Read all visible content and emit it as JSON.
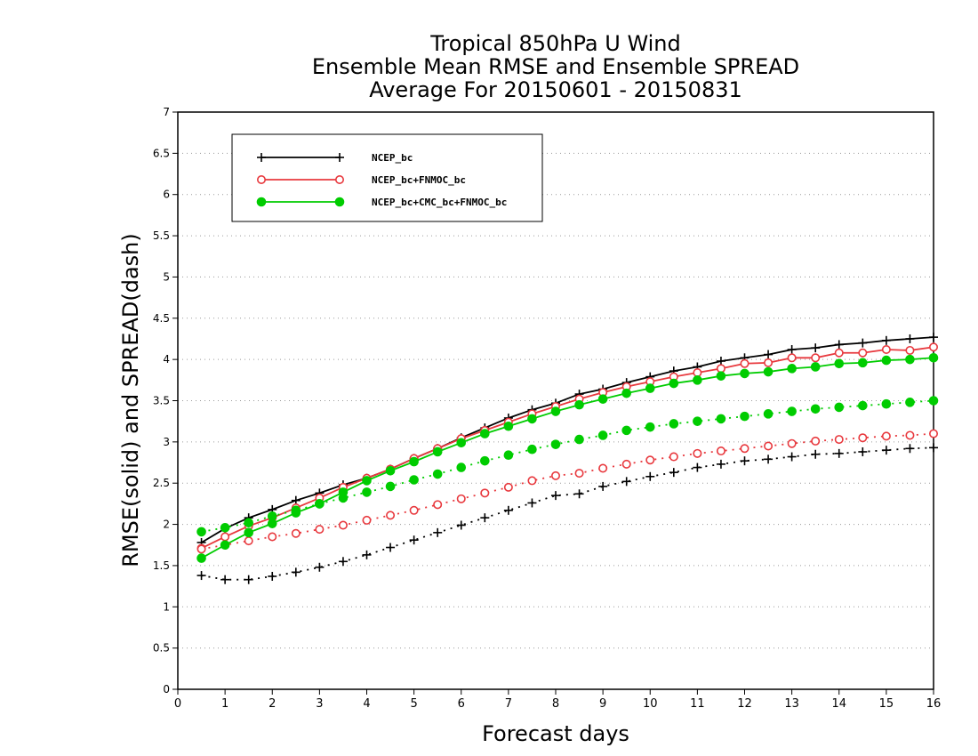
{
  "chart_data": {
    "type": "line",
    "title": "Tropical 850hPa U Wind",
    "subtitle": "Ensemble Mean RMSE and Ensemble SPREAD",
    "subtitle2": "Average For 20150601 - 20150831",
    "xlabel": "Forecast days",
    "ylabel": "RMSE(solid) and SPREAD(dash)",
    "xlim": [
      0,
      16
    ],
    "ylim": [
      0,
      7
    ],
    "x_ticks": [
      "0",
      "1",
      "2",
      "3",
      "4",
      "5",
      "6",
      "7",
      "8",
      "9",
      "10",
      "11",
      "12",
      "13",
      "14",
      "15",
      "16"
    ],
    "y_ticks": [
      "0",
      "0.5",
      "1",
      "1.5",
      "2",
      "2.5",
      "3",
      "3.5",
      "4",
      "4.5",
      "5",
      "5.5",
      "6",
      "6.5",
      "7"
    ],
    "grid": "horizontal dotted",
    "legend_position": "top-left",
    "x": [
      0.5,
      1,
      1.5,
      2,
      2.5,
      3,
      3.5,
      4,
      4.5,
      5,
      5.5,
      6,
      6.5,
      7,
      7.5,
      8,
      8.5,
      9,
      9.5,
      10,
      10.5,
      11,
      11.5,
      12,
      12.5,
      13,
      13.5,
      14,
      14.5,
      15,
      15.5,
      16
    ],
    "series": [
      {
        "name": "NCEP_bc",
        "color": "#000000",
        "marker": "plus",
        "rmse": [
          1.78,
          1.95,
          2.08,
          2.18,
          2.29,
          2.38,
          2.48,
          2.56,
          2.67,
          2.8,
          2.92,
          3.05,
          3.17,
          3.29,
          3.39,
          3.47,
          3.58,
          3.64,
          3.72,
          3.79,
          3.86,
          3.91,
          3.98,
          4.02,
          4.06,
          4.12,
          4.14,
          4.18,
          4.2,
          4.23,
          4.25,
          4.27
        ],
        "spread": [
          1.38,
          1.33,
          1.33,
          1.37,
          1.42,
          1.48,
          1.55,
          1.63,
          1.72,
          1.81,
          1.9,
          1.99,
          2.08,
          2.17,
          2.26,
          2.35,
          2.37,
          2.46,
          2.52,
          2.58,
          2.63,
          2.69,
          2.73,
          2.77,
          2.79,
          2.82,
          2.85,
          2.86,
          2.88,
          2.9,
          2.92,
          2.93
        ]
      },
      {
        "name": "NCEP_bc+FNMOC_bc",
        "color": "#e8393e",
        "marker": "open-circle",
        "rmse": [
          1.71,
          1.85,
          1.98,
          2.08,
          2.2,
          2.32,
          2.45,
          2.56,
          2.67,
          2.8,
          2.92,
          3.04,
          3.14,
          3.24,
          3.34,
          3.43,
          3.52,
          3.6,
          3.67,
          3.73,
          3.79,
          3.84,
          3.89,
          3.95,
          3.96,
          4.02,
          4.02,
          4.08,
          4.08,
          4.12,
          4.11,
          4.15
        ],
        "spread": [
          1.7,
          1.75,
          1.8,
          1.85,
          1.89,
          1.94,
          1.99,
          2.05,
          2.11,
          2.17,
          2.24,
          2.31,
          2.38,
          2.45,
          2.53,
          2.59,
          2.62,
          2.68,
          2.73,
          2.78,
          2.82,
          2.86,
          2.89,
          2.92,
          2.95,
          2.98,
          3.01,
          3.03,
          3.05,
          3.07,
          3.08,
          3.1
        ]
      },
      {
        "name": "NCEP_bc+CMC_bc+FNMOC_bc",
        "color": "#00cc00",
        "marker": "filled-circle",
        "rmse": [
          1.59,
          1.75,
          1.9,
          2.01,
          2.14,
          2.25,
          2.39,
          2.53,
          2.65,
          2.76,
          2.88,
          2.99,
          3.1,
          3.19,
          3.28,
          3.37,
          3.45,
          3.52,
          3.59,
          3.65,
          3.71,
          3.75,
          3.8,
          3.83,
          3.85,
          3.89,
          3.91,
          3.95,
          3.96,
          3.99,
          4.0,
          4.02
        ],
        "spread": [
          1.91,
          1.96,
          2.02,
          2.1,
          2.17,
          2.25,
          2.32,
          2.39,
          2.46,
          2.54,
          2.61,
          2.69,
          2.77,
          2.84,
          2.91,
          2.97,
          3.03,
          3.08,
          3.14,
          3.18,
          3.22,
          3.25,
          3.28,
          3.31,
          3.34,
          3.37,
          3.4,
          3.42,
          3.44,
          3.46,
          3.48,
          3.5
        ]
      }
    ]
  }
}
